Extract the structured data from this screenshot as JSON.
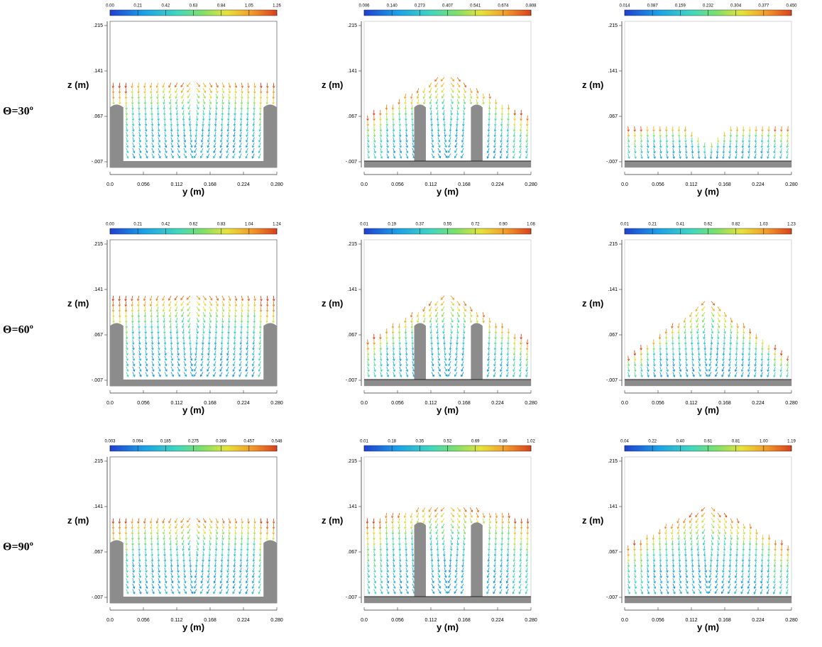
{
  "row_labels": [
    "Θ=30º",
    "Θ=60º",
    "Θ=90º"
  ],
  "z_ticks": [
    ".215",
    ".141",
    ".067",
    "-.007"
  ],
  "y_ticks": [
    "0.0",
    "0.056",
    "0.112",
    "0.168",
    "0.224",
    "0.280"
  ],
  "z_label": "z (m)",
  "y_label": "y (m)",
  "panels": [
    {
      "colorbar": [
        "0.00",
        "0.21",
        "0.42",
        "0.63",
        "0.84",
        "1.05",
        "1.26"
      ]
    },
    {
      "colorbar": [
        "0.006",
        "0.140",
        "0.273",
        "0.407",
        "0.541",
        "0.674",
        "0.808"
      ]
    },
    {
      "colorbar": [
        "0.014",
        "0.087",
        "0.159",
        "0.232",
        "0.304",
        "0.377",
        "0.450"
      ]
    },
    {
      "colorbar": [
        "0.00",
        "0.21",
        "0.42",
        "0.62",
        "0.83",
        "1.04",
        "1.24"
      ]
    },
    {
      "colorbar": [
        "0.01",
        "0.19",
        "0.37",
        "0.55",
        "0.72",
        "0.90",
        "1.08"
      ]
    },
    {
      "colorbar": [
        "0.01",
        "0.21",
        "0.41",
        "0.62",
        "0.82",
        "1.03",
        "1.23"
      ]
    },
    {
      "colorbar": [
        "0.003",
        "0.094",
        "0.185",
        "0.275",
        "0.366",
        "0.457",
        "0.548"
      ]
    },
    {
      "colorbar": [
        "0.01",
        "0.18",
        "0.35",
        "0.52",
        "0.69",
        "0.86",
        "1.02"
      ]
    },
    {
      "colorbar": [
        "0.04",
        "0.22",
        "0.40",
        "0.61",
        "0.81",
        "1.00",
        "1.19"
      ]
    }
  ]
}
